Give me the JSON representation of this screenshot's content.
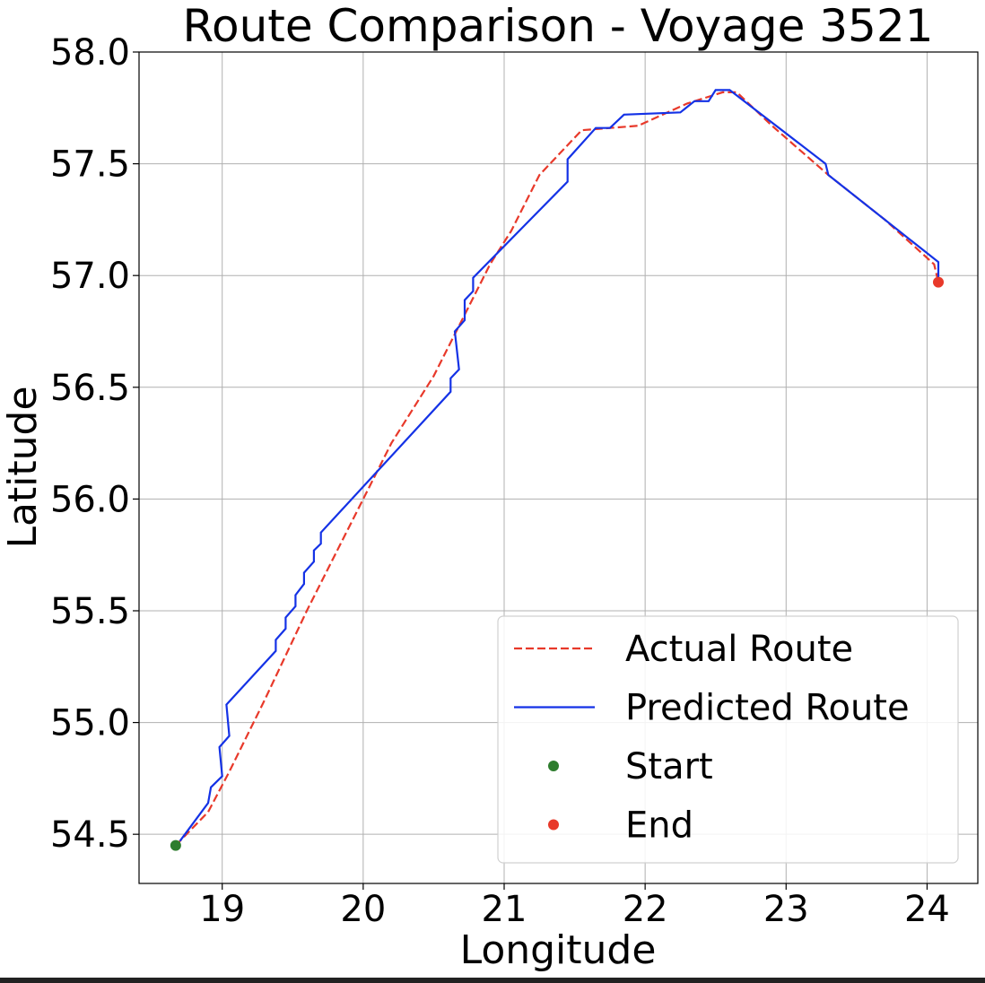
{
  "chart_data": {
    "type": "line",
    "title": "Route Comparison - Voyage 3521",
    "x_label": "Longitude",
    "y_label": "Latitude",
    "xlim": [
      18.41,
      24.36
    ],
    "ylim": [
      54.28,
      58.0
    ],
    "xticks": [
      19,
      20,
      21,
      22,
      23,
      24
    ],
    "yticks": [
      {
        "value": 54.5,
        "label": "54.5"
      },
      {
        "value": 55.0,
        "label": "55.0"
      },
      {
        "value": 55.5,
        "label": "55.5"
      },
      {
        "value": 56.0,
        "label": "56.0"
      },
      {
        "value": 56.5,
        "label": "56.5"
      },
      {
        "value": 57.0,
        "label": "57.0"
      },
      {
        "value": 57.5,
        "label": "57.5"
      },
      {
        "value": 58.0,
        "label": "58.0"
      }
    ],
    "grid": true,
    "legend": "lower right",
    "series": [
      {
        "name": "Actual Route",
        "color": "#e8392a",
        "style": "dashed",
        "x": [
          18.67,
          18.9,
          19.05,
          19.3,
          19.6,
          19.8,
          20.0,
          20.2,
          20.5,
          20.7,
          20.9,
          21.05,
          21.25,
          21.55,
          21.95,
          22.3,
          22.55,
          22.65,
          22.9,
          23.3,
          23.7,
          24.05,
          24.08
        ],
        "values": [
          54.45,
          54.6,
          54.78,
          55.1,
          55.5,
          55.75,
          56.0,
          56.25,
          56.55,
          56.8,
          57.05,
          57.2,
          57.45,
          57.65,
          57.67,
          57.77,
          57.82,
          57.82,
          57.67,
          57.45,
          57.25,
          57.05,
          56.97
        ]
      },
      {
        "name": "Predicted Route",
        "color": "#1432e6",
        "style": "solid",
        "x": [
          18.7,
          18.9,
          18.92,
          19.0,
          18.98,
          19.05,
          19.03,
          19.38,
          19.38,
          19.45,
          19.45,
          19.52,
          19.52,
          19.58,
          19.58,
          19.65,
          19.65,
          19.7,
          19.7,
          20.62,
          20.62,
          20.68,
          20.65,
          20.72,
          20.72,
          20.78,
          20.78,
          21.45,
          21.45,
          21.65,
          21.75,
          21.85,
          22.25,
          22.35,
          22.45,
          22.5,
          22.6,
          23.28,
          23.3,
          24.08,
          24.08
        ],
        "values": [
          54.47,
          54.64,
          54.71,
          54.76,
          54.89,
          54.94,
          55.08,
          55.32,
          55.37,
          55.42,
          55.47,
          55.52,
          55.57,
          55.62,
          55.67,
          55.72,
          55.77,
          55.8,
          55.85,
          56.48,
          56.54,
          56.58,
          56.75,
          56.8,
          56.89,
          56.93,
          56.99,
          57.42,
          57.52,
          57.66,
          57.66,
          57.72,
          57.73,
          57.78,
          57.78,
          57.83,
          57.83,
          57.5,
          57.45,
          57.06,
          56.97
        ]
      },
      {
        "name": "Start",
        "color": "#2e7d2e",
        "style": "marker",
        "x": [
          18.67
        ],
        "values": [
          54.45
        ]
      },
      {
        "name": "End",
        "color": "#e8392a",
        "style": "marker",
        "x": [
          24.08
        ],
        "values": [
          56.97
        ]
      }
    ]
  }
}
